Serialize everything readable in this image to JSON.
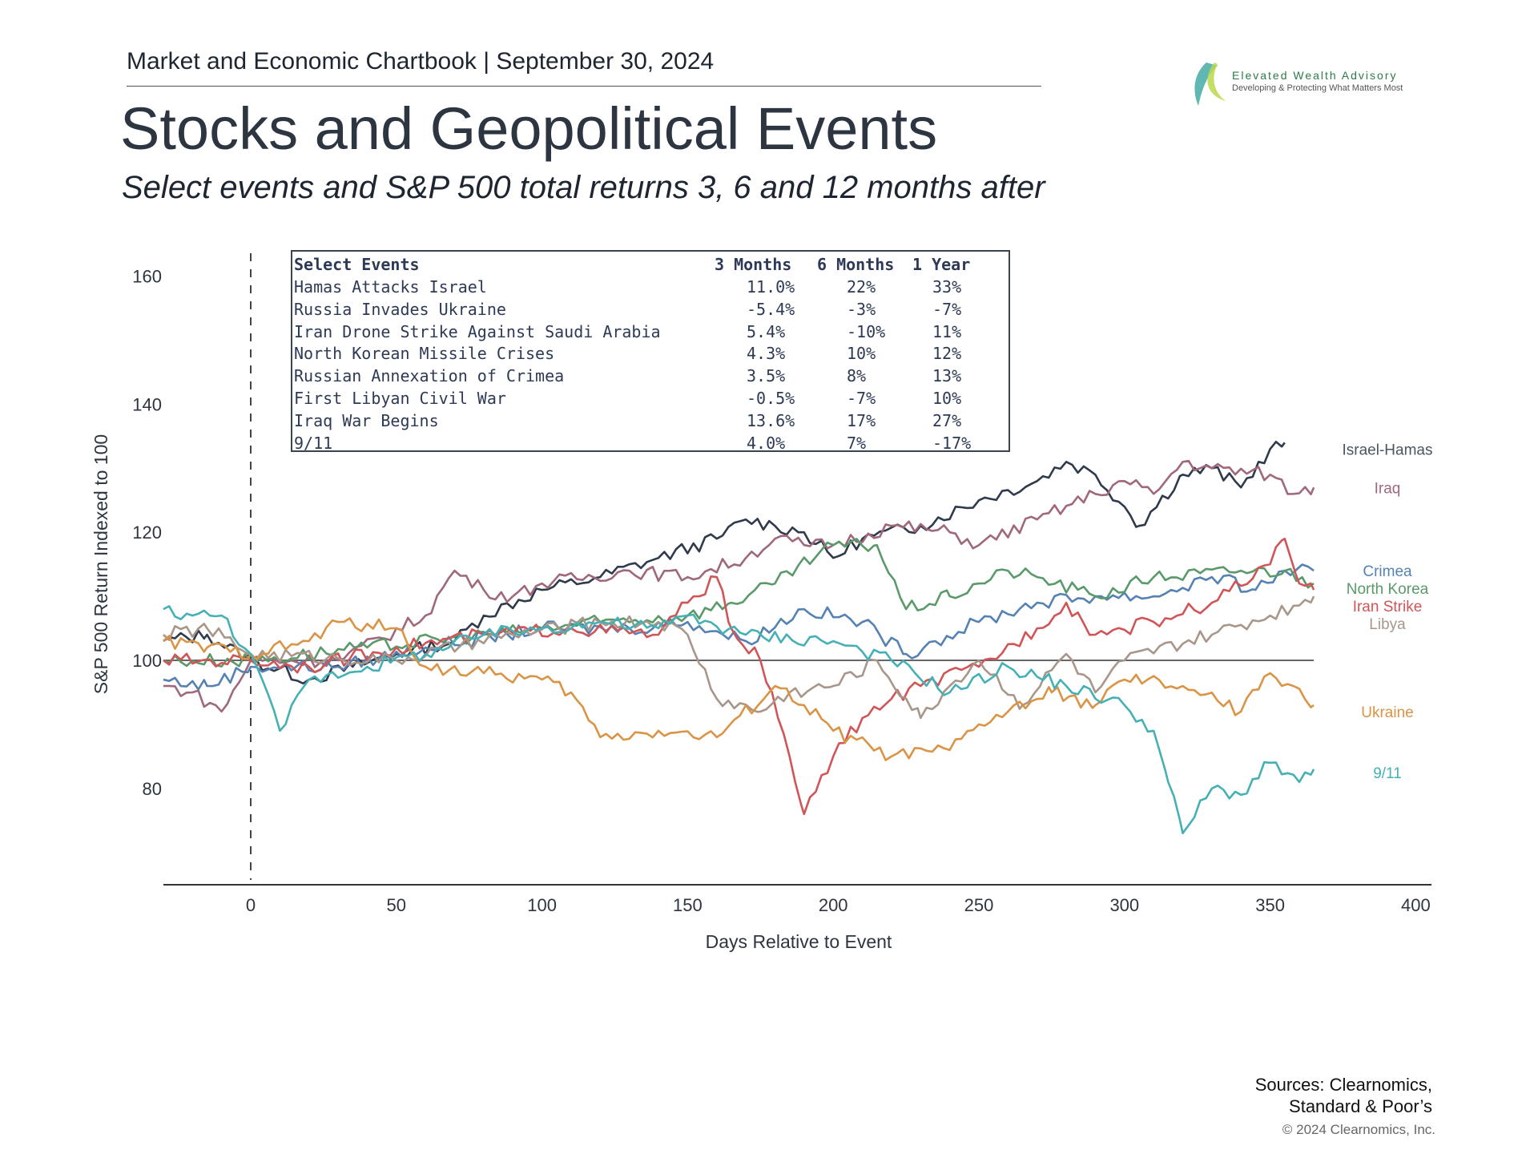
{
  "header": {
    "text": "Market and Economic Chartbook | September 30, 2024"
  },
  "title": "Stocks and Geopolitical Events",
  "subtitle": "Select events and S&P 500 total returns 3, 6 and 12 months after",
  "logo": {
    "name": "Elevated Wealth Advisory",
    "tagline": "Developing & Protecting What Matters Most"
  },
  "table": {
    "headers": [
      "Select Events",
      "3 Months",
      "6 Months",
      "1 Year"
    ],
    "rows": [
      [
        "Hamas Attacks Israel",
        "11.0%",
        "22%",
        "33%"
      ],
      [
        "Russia Invades Ukraine",
        "-5.4%",
        "-3%",
        "-7%"
      ],
      [
        "Iran Drone Strike Against Saudi Arabia",
        "5.4%",
        "-10%",
        "11%"
      ],
      [
        "North Korean Missile Crises",
        "4.3%",
        "10%",
        "12%"
      ],
      [
        "Russian Annexation of Crimea",
        "3.5%",
        "8%",
        "13%"
      ],
      [
        "First Libyan Civil War",
        "-0.5%",
        "-7%",
        "10%"
      ],
      [
        "Iraq War Begins",
        "13.6%",
        "17%",
        "27%"
      ],
      [
        "9/11",
        "4.0%",
        "7%",
        "-17%"
      ]
    ]
  },
  "chart_data": {
    "type": "line",
    "xlabel": "Days Relative to Event",
    "ylabel": "S&P 500 Return Indexed to 100",
    "xlim": [
      -30,
      400
    ],
    "ylim": [
      65,
      164
    ],
    "xticks": [
      0,
      50,
      100,
      150,
      200,
      250,
      300,
      350,
      400
    ],
    "yticks": [
      80,
      100,
      120,
      140,
      160
    ],
    "reference_lines": {
      "vertical_dashed_x": 0,
      "horizontal_y": 100
    },
    "grid": false,
    "series": [
      {
        "name": "Israel-Hamas",
        "color": "#2f3b4c",
        "points": [
          [
            -30,
            103
          ],
          [
            -15,
            104
          ],
          [
            0,
            100
          ],
          [
            20,
            97
          ],
          [
            35,
            99
          ],
          [
            50,
            101
          ],
          [
            70,
            103
          ],
          [
            80,
            107
          ],
          [
            100,
            111
          ],
          [
            120,
            113
          ],
          [
            140,
            116
          ],
          [
            160,
            119
          ],
          [
            170,
            122
          ],
          [
            180,
            121
          ],
          [
            190,
            120
          ],
          [
            200,
            116
          ],
          [
            210,
            119
          ],
          [
            230,
            121
          ],
          [
            250,
            125
          ],
          [
            270,
            128
          ],
          [
            280,
            131
          ],
          [
            290,
            129
          ],
          [
            300,
            124
          ],
          [
            305,
            121
          ],
          [
            320,
            129
          ],
          [
            330,
            130
          ],
          [
            340,
            127
          ],
          [
            350,
            133
          ],
          [
            355,
            134
          ]
        ]
      },
      {
        "name": "Iraq",
        "color": "#a0687c",
        "points": [
          [
            -30,
            96
          ],
          [
            -20,
            95
          ],
          [
            -10,
            92
          ],
          [
            0,
            100
          ],
          [
            30,
            100
          ],
          [
            60,
            107
          ],
          [
            70,
            114
          ],
          [
            80,
            111
          ],
          [
            90,
            110
          ],
          [
            100,
            112
          ],
          [
            130,
            114
          ],
          [
            150,
            113
          ],
          [
            170,
            116
          ],
          [
            180,
            119
          ],
          [
            190,
            118
          ],
          [
            200,
            118
          ],
          [
            220,
            121
          ],
          [
            240,
            120
          ],
          [
            250,
            118
          ],
          [
            270,
            122
          ],
          [
            290,
            126
          ],
          [
            300,
            128
          ],
          [
            310,
            126
          ],
          [
            320,
            131
          ],
          [
            330,
            130
          ],
          [
            350,
            129
          ],
          [
            358,
            126
          ],
          [
            365,
            127
          ]
        ]
      },
      {
        "name": "Crimea",
        "color": "#5582b2",
        "points": [
          [
            -30,
            97
          ],
          [
            -15,
            96
          ],
          [
            0,
            99
          ],
          [
            30,
            99
          ],
          [
            60,
            102
          ],
          [
            100,
            105
          ],
          [
            130,
            105
          ],
          [
            150,
            106
          ],
          [
            170,
            103
          ],
          [
            190,
            108
          ],
          [
            210,
            106
          ],
          [
            225,
            101
          ],
          [
            235,
            103
          ],
          [
            250,
            106
          ],
          [
            270,
            109
          ],
          [
            290,
            110
          ],
          [
            310,
            110
          ],
          [
            330,
            113
          ],
          [
            345,
            111
          ],
          [
            355,
            114
          ],
          [
            365,
            114
          ]
        ]
      },
      {
        "name": "North Korea",
        "color": "#5a9a6a",
        "points": [
          [
            -30,
            100
          ],
          [
            0,
            100
          ],
          [
            40,
            102
          ],
          [
            80,
            104
          ],
          [
            120,
            106
          ],
          [
            150,
            107
          ],
          [
            165,
            109
          ],
          [
            180,
            112
          ],
          [
            200,
            118
          ],
          [
            215,
            118
          ],
          [
            225,
            108
          ],
          [
            240,
            110
          ],
          [
            250,
            112
          ],
          [
            260,
            114
          ],
          [
            270,
            113
          ],
          [
            290,
            110
          ],
          [
            310,
            113
          ],
          [
            340,
            114
          ],
          [
            355,
            114
          ],
          [
            365,
            112
          ]
        ]
      },
      {
        "name": "Iran Strike",
        "color": "#d05558",
        "points": [
          [
            -30,
            100
          ],
          [
            0,
            100
          ],
          [
            20,
            99
          ],
          [
            50,
            102
          ],
          [
            80,
            104
          ],
          [
            110,
            105
          ],
          [
            140,
            104
          ],
          [
            150,
            109
          ],
          [
            160,
            113
          ],
          [
            165,
            105
          ],
          [
            175,
            100
          ],
          [
            185,
            85
          ],
          [
            190,
            76
          ],
          [
            200,
            85
          ],
          [
            210,
            91
          ],
          [
            220,
            94
          ],
          [
            230,
            96
          ],
          [
            250,
            99
          ],
          [
            270,
            105
          ],
          [
            280,
            109
          ],
          [
            290,
            104
          ],
          [
            310,
            106
          ],
          [
            330,
            109
          ],
          [
            350,
            115
          ],
          [
            355,
            119
          ],
          [
            360,
            112
          ],
          [
            365,
            111
          ]
        ]
      },
      {
        "name": "Libya",
        "color": "#a8968a",
        "points": [
          [
            -30,
            104
          ],
          [
            -15,
            105
          ],
          [
            0,
            101
          ],
          [
            50,
            100
          ],
          [
            90,
            104
          ],
          [
            120,
            106
          ],
          [
            140,
            106
          ],
          [
            150,
            104
          ],
          [
            160,
            94
          ],
          [
            175,
            92
          ],
          [
            185,
            95
          ],
          [
            200,
            96
          ],
          [
            215,
            100
          ],
          [
            230,
            91
          ],
          [
            240,
            96
          ],
          [
            250,
            100
          ],
          [
            265,
            93
          ],
          [
            280,
            101
          ],
          [
            290,
            95
          ],
          [
            300,
            100
          ],
          [
            330,
            104
          ],
          [
            350,
            107
          ],
          [
            365,
            110
          ]
        ]
      },
      {
        "name": "Ukraine",
        "color": "#d99445",
        "points": [
          [
            -30,
            103
          ],
          [
            -15,
            102
          ],
          [
            0,
            101
          ],
          [
            20,
            103
          ],
          [
            30,
            106
          ],
          [
            50,
            105
          ],
          [
            60,
            99
          ],
          [
            80,
            98
          ],
          [
            100,
            97
          ],
          [
            110,
            95
          ],
          [
            120,
            88
          ],
          [
            140,
            89
          ],
          [
            160,
            88
          ],
          [
            180,
            96
          ],
          [
            190,
            93
          ],
          [
            200,
            89
          ],
          [
            220,
            85
          ],
          [
            240,
            86
          ],
          [
            250,
            90
          ],
          [
            260,
            92
          ],
          [
            275,
            95
          ],
          [
            290,
            93
          ],
          [
            300,
            97
          ],
          [
            320,
            96
          ],
          [
            340,
            92
          ],
          [
            350,
            98
          ],
          [
            358,
            96
          ],
          [
            365,
            93
          ]
        ]
      },
      {
        "name": "9/11",
        "color": "#45b0b5",
        "points": [
          [
            -30,
            108
          ],
          [
            -20,
            107
          ],
          [
            -10,
            107
          ],
          [
            0,
            101
          ],
          [
            10,
            89
          ],
          [
            20,
            97
          ],
          [
            40,
            99
          ],
          [
            60,
            101
          ],
          [
            80,
            104
          ],
          [
            100,
            105
          ],
          [
            120,
            106
          ],
          [
            140,
            105
          ],
          [
            150,
            107
          ],
          [
            170,
            104
          ],
          [
            200,
            103
          ],
          [
            220,
            100
          ],
          [
            240,
            95
          ],
          [
            260,
            99
          ],
          [
            280,
            96
          ],
          [
            300,
            93
          ],
          [
            310,
            89
          ],
          [
            315,
            81
          ],
          [
            320,
            73
          ],
          [
            330,
            80
          ],
          [
            340,
            79
          ],
          [
            350,
            84
          ],
          [
            360,
            81
          ],
          [
            365,
            83
          ]
        ]
      }
    ],
    "end_labels": [
      {
        "text": "Israel-Hamas",
        "color": "#4a5563",
        "y": 133
      },
      {
        "text": "Iraq",
        "color": "#a0687c",
        "y": 127
      },
      {
        "text": "Crimea",
        "color": "#5582b2",
        "y": 114
      },
      {
        "text": "North Korea",
        "color": "#5a9a6a",
        "y": 112.3
      },
      {
        "text": "Iran Strike",
        "color": "#d05558",
        "y": 110
      },
      {
        "text": "Libya",
        "color": "#a8968a",
        "y": 108
      },
      {
        "text": "Ukraine",
        "color": "#d99445",
        "y": 92
      },
      {
        "text": "9/11",
        "color": "#45b0b5",
        "y": 82.5
      }
    ]
  },
  "footer": {
    "sources_line1": "Sources: Clearnomics,",
    "sources_line2": "Standard & Poor’s",
    "copyright": "© 2024 Clearnomics, Inc."
  }
}
